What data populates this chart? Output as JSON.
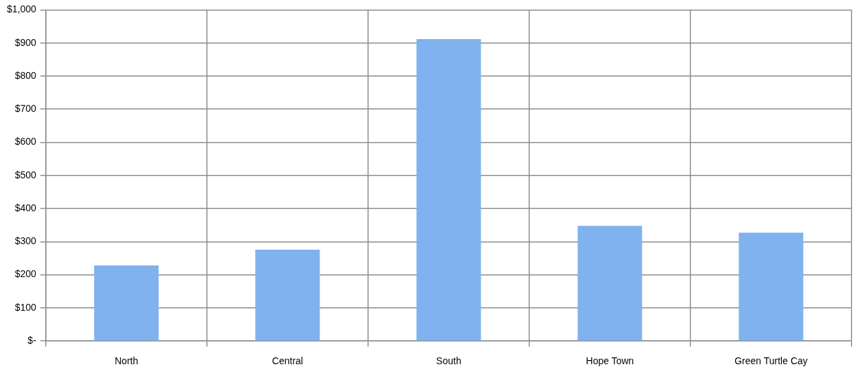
{
  "chart_data": {
    "type": "bar",
    "categories": [
      "North",
      "Central",
      "South",
      "Hope Town",
      "Green Turtle Cay"
    ],
    "values": [
      228,
      276,
      912,
      348,
      327
    ],
    "color": "#7fb2ee",
    "ylim": [
      0,
      1000
    ],
    "yticks": [
      {
        "value": 0,
        "label": "$-"
      },
      {
        "value": 100,
        "label": "$100"
      },
      {
        "value": 200,
        "label": "$200"
      },
      {
        "value": 300,
        "label": "$300"
      },
      {
        "value": 400,
        "label": "$400"
      },
      {
        "value": 500,
        "label": "$500"
      },
      {
        "value": 600,
        "label": "$600"
      },
      {
        "value": 700,
        "label": "$700"
      },
      {
        "value": 800,
        "label": "$800"
      },
      {
        "value": 900,
        "label": "$900"
      },
      {
        "value": 1000,
        "label": "$1,000"
      }
    ],
    "grid": true
  }
}
